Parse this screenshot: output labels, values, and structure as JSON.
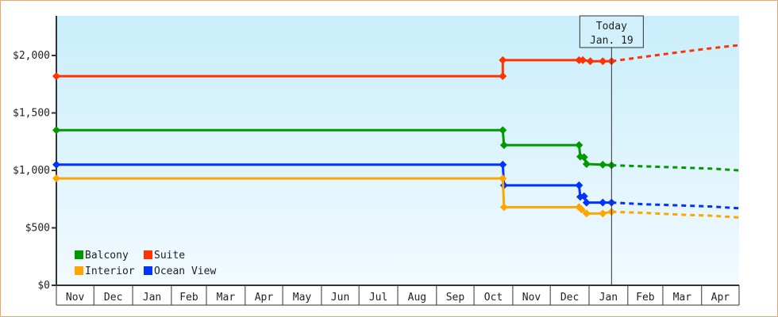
{
  "chart_data": {
    "type": "line",
    "title": "",
    "xlabel": "",
    "ylabel": "",
    "x_range": [
      "2017-11-01",
      "2019-05-01"
    ],
    "ylim": [
      0,
      2345
    ],
    "y_ticks": [
      0,
      500,
      1000,
      1500,
      2000
    ],
    "y_tick_labels": [
      "$0",
      "$500",
      "$1,000",
      "$1,500",
      "$2,000"
    ],
    "x_tick_labels": [
      "Nov",
      "Dec",
      "Jan",
      "Feb",
      "Mar",
      "Apr",
      "May",
      "Jun",
      "Jul",
      "Aug",
      "Sep",
      "Oct",
      "Nov",
      "Dec",
      "Jan",
      "Feb",
      "Mar",
      "Apr"
    ],
    "x_tick_starts": [
      "2017-11-01",
      "2017-12-01",
      "2018-01-01",
      "2018-02-01",
      "2018-03-01",
      "2018-04-01",
      "2018-05-01",
      "2018-06-01",
      "2018-07-01",
      "2018-08-01",
      "2018-09-01",
      "2018-10-01",
      "2018-11-01",
      "2018-12-01",
      "2019-01-01",
      "2019-02-01",
      "2019-03-01",
      "2019-04-01"
    ],
    "grid": false,
    "legend_placement": "bottom-left",
    "today": {
      "date": "2019-01-19",
      "label_line1": "Today",
      "label_line2": "Jan. 19"
    },
    "series": [
      {
        "name": "Suite",
        "color": "#ff3300",
        "points": [
          [
            "2017-11-01",
            1820
          ],
          [
            "2018-10-24",
            1820
          ],
          [
            "2018-10-24",
            1960
          ],
          [
            "2018-12-24",
            1960
          ],
          [
            "2018-12-27",
            1960
          ],
          [
            "2019-01-02",
            1950
          ],
          [
            "2019-01-12",
            1950
          ],
          [
            "2019-01-19",
            1950
          ]
        ],
        "forecast": [
          [
            "2019-01-19",
            1950
          ],
          [
            "2019-02-15",
            1990
          ],
          [
            "2019-03-15",
            2030
          ],
          [
            "2019-04-10",
            2065
          ],
          [
            "2019-05-01",
            2090
          ]
        ]
      },
      {
        "name": "Balcony",
        "color": "#009900",
        "points": [
          [
            "2017-11-01",
            1350
          ],
          [
            "2018-10-24",
            1350
          ],
          [
            "2018-10-25",
            1220
          ],
          [
            "2018-12-24",
            1220
          ],
          [
            "2018-12-25",
            1120
          ],
          [
            "2018-12-28",
            1115
          ],
          [
            "2018-12-30",
            1055
          ],
          [
            "2019-01-12",
            1050
          ],
          [
            "2019-01-19",
            1045
          ]
        ],
        "forecast": [
          [
            "2019-01-19",
            1045
          ],
          [
            "2019-02-15",
            1035
          ],
          [
            "2019-03-15",
            1025
          ],
          [
            "2019-04-10",
            1015
          ],
          [
            "2019-05-01",
            1000
          ]
        ]
      },
      {
        "name": "Ocean View",
        "color": "#0033ff",
        "points": [
          [
            "2017-11-01",
            1050
          ],
          [
            "2018-10-24",
            1050
          ],
          [
            "2018-10-25",
            870
          ],
          [
            "2018-12-24",
            870
          ],
          [
            "2018-12-25",
            770
          ],
          [
            "2018-12-28",
            775
          ],
          [
            "2018-12-30",
            720
          ],
          [
            "2019-01-12",
            720
          ],
          [
            "2019-01-19",
            720
          ]
        ],
        "forecast": [
          [
            "2019-01-19",
            720
          ],
          [
            "2019-02-15",
            705
          ],
          [
            "2019-03-15",
            695
          ],
          [
            "2019-04-10",
            685
          ],
          [
            "2019-05-01",
            670
          ]
        ]
      },
      {
        "name": "Interior",
        "color": "#ffa500",
        "points": [
          [
            "2017-11-01",
            930
          ],
          [
            "2018-10-24",
            930
          ],
          [
            "2018-10-25",
            680
          ],
          [
            "2018-12-24",
            680
          ],
          [
            "2018-12-26",
            660
          ],
          [
            "2018-12-30",
            625
          ],
          [
            "2019-01-12",
            625
          ],
          [
            "2019-01-19",
            640
          ]
        ],
        "forecast": [
          [
            "2019-01-19",
            640
          ],
          [
            "2019-02-15",
            630
          ],
          [
            "2019-03-15",
            615
          ],
          [
            "2019-04-10",
            605
          ],
          [
            "2019-05-01",
            590
          ]
        ]
      }
    ],
    "legend": [
      {
        "name": "Balcony",
        "color": "#009900"
      },
      {
        "name": "Suite",
        "color": "#ff3300"
      },
      {
        "name": "Interior",
        "color": "#ffa500"
      },
      {
        "name": "Ocean View",
        "color": "#0033ff"
      }
    ]
  }
}
